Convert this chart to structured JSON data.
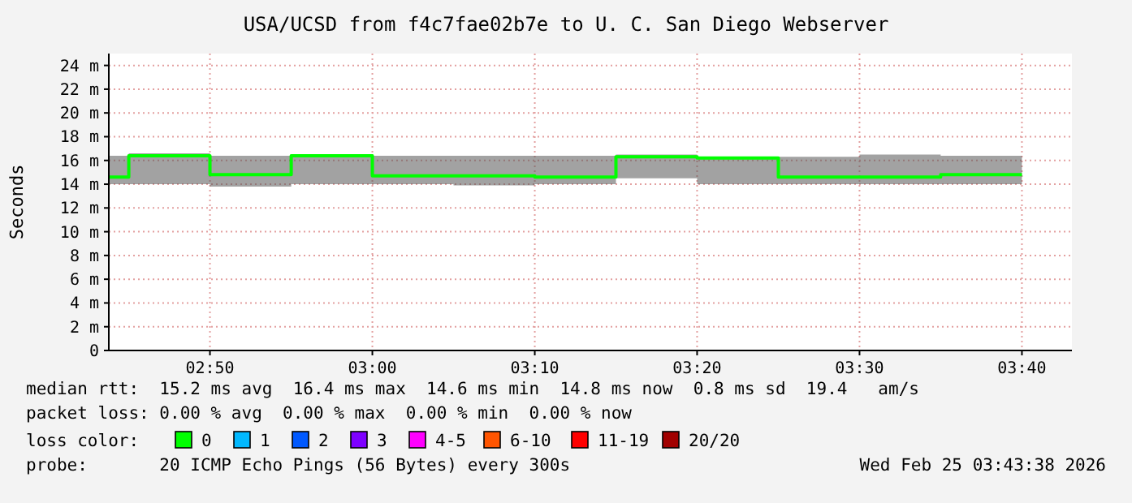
{
  "chart_data": {
    "type": "step",
    "title": "USA/UCSD from f4c7fae02b7e to U. C. San Diego Webserver",
    "ylabel": "Seconds",
    "legend_title": "loss color:",
    "legend": "bottom",
    "grid": true,
    "x": [
      2.7295,
      2.75,
      2.8333,
      2.9167,
      3.0,
      3.0833,
      3.1667,
      3.25,
      3.3333,
      3.4167,
      3.5,
      3.5833,
      3.6667
    ],
    "xlim": [
      2.7295,
      3.718
    ],
    "xticks": [
      {
        "value": 2.8333,
        "label": "02:50"
      },
      {
        "value": 3.0,
        "label": "03:00"
      },
      {
        "value": 3.1667,
        "label": "03:10"
      },
      {
        "value": 3.3333,
        "label": "03:20"
      },
      {
        "value": 3.5,
        "label": "03:30"
      },
      {
        "value": 3.6667,
        "label": "03:40"
      }
    ],
    "ylim": [
      0,
      25
    ],
    "yticks": [
      {
        "value": 0,
        "label": "0"
      },
      {
        "value": 2,
        "label": "2 m"
      },
      {
        "value": 4,
        "label": "4 m"
      },
      {
        "value": 6,
        "label": "6 m"
      },
      {
        "value": 8,
        "label": "8 m"
      },
      {
        "value": 10,
        "label": "10 m"
      },
      {
        "value": 12,
        "label": "12 m"
      },
      {
        "value": 14,
        "label": "14 m"
      },
      {
        "value": 16,
        "label": "16 m"
      },
      {
        "value": 18,
        "label": "18 m"
      },
      {
        "value": 20,
        "label": "20 m"
      },
      {
        "value": 22,
        "label": "22 m"
      },
      {
        "value": 24,
        "label": "24 m"
      }
    ],
    "series": [
      {
        "name": "0",
        "color": "#00ff00",
        "values": [
          14.6,
          16.4,
          14.8,
          16.4,
          14.7,
          14.7,
          14.6,
          16.3,
          16.2,
          14.6,
          14.6,
          14.8,
          14.8
        ],
        "lower": [
          14.0,
          14.0,
          13.8,
          14.0,
          14.0,
          13.9,
          14.0,
          14.5,
          14.0,
          14.0,
          14.0,
          14.0,
          14.0
        ],
        "upper": [
          16.4,
          16.6,
          16.4,
          16.4,
          16.4,
          16.4,
          16.4,
          16.5,
          16.3,
          16.3,
          16.5,
          16.4,
          16.4
        ]
      },
      {
        "name": "1",
        "color": "#00b8ff",
        "values": [
          null,
          null,
          null,
          null,
          null,
          null,
          null,
          null,
          null,
          null,
          null,
          null,
          null
        ]
      },
      {
        "name": "2",
        "color": "#0059ff",
        "values": [
          null,
          null,
          null,
          null,
          null,
          null,
          null,
          null,
          null,
          null,
          null,
          null,
          null
        ]
      },
      {
        "name": "3",
        "color": "#7e00ff",
        "values": [
          null,
          null,
          null,
          null,
          null,
          null,
          null,
          null,
          null,
          null,
          null,
          null,
          null
        ]
      },
      {
        "name": "4-5",
        "color": "#ff00ff",
        "values": [
          null,
          null,
          null,
          null,
          null,
          null,
          null,
          null,
          null,
          null,
          null,
          null,
          null
        ]
      },
      {
        "name": "6-10",
        "color": "#ff5500",
        "values": [
          null,
          null,
          null,
          null,
          null,
          null,
          null,
          null,
          null,
          null,
          null,
          null,
          null
        ]
      },
      {
        "name": "11-19",
        "color": "#ff0000",
        "values": [
          null,
          null,
          null,
          null,
          null,
          null,
          null,
          null,
          null,
          null,
          null,
          null,
          null
        ]
      },
      {
        "name": "20/20",
        "color": "#a10000",
        "values": [
          null,
          null,
          null,
          null,
          null,
          null,
          null,
          null,
          null,
          null,
          null,
          null,
          null
        ]
      }
    ],
    "annotations": [
      "median rtt:  15.2 ms avg  16.4 ms max  14.6 ms min  14.8 ms now  0.8 ms sd  19.4   am/s",
      "packet loss: 0.00 % avg  0.00 % max  0.00 % min  0.00 % now",
      "probe:       20 ICMP Echo Pings (56 Bytes) every 300s",
      "Wed Feb 25 03:43:38 2026"
    ]
  }
}
